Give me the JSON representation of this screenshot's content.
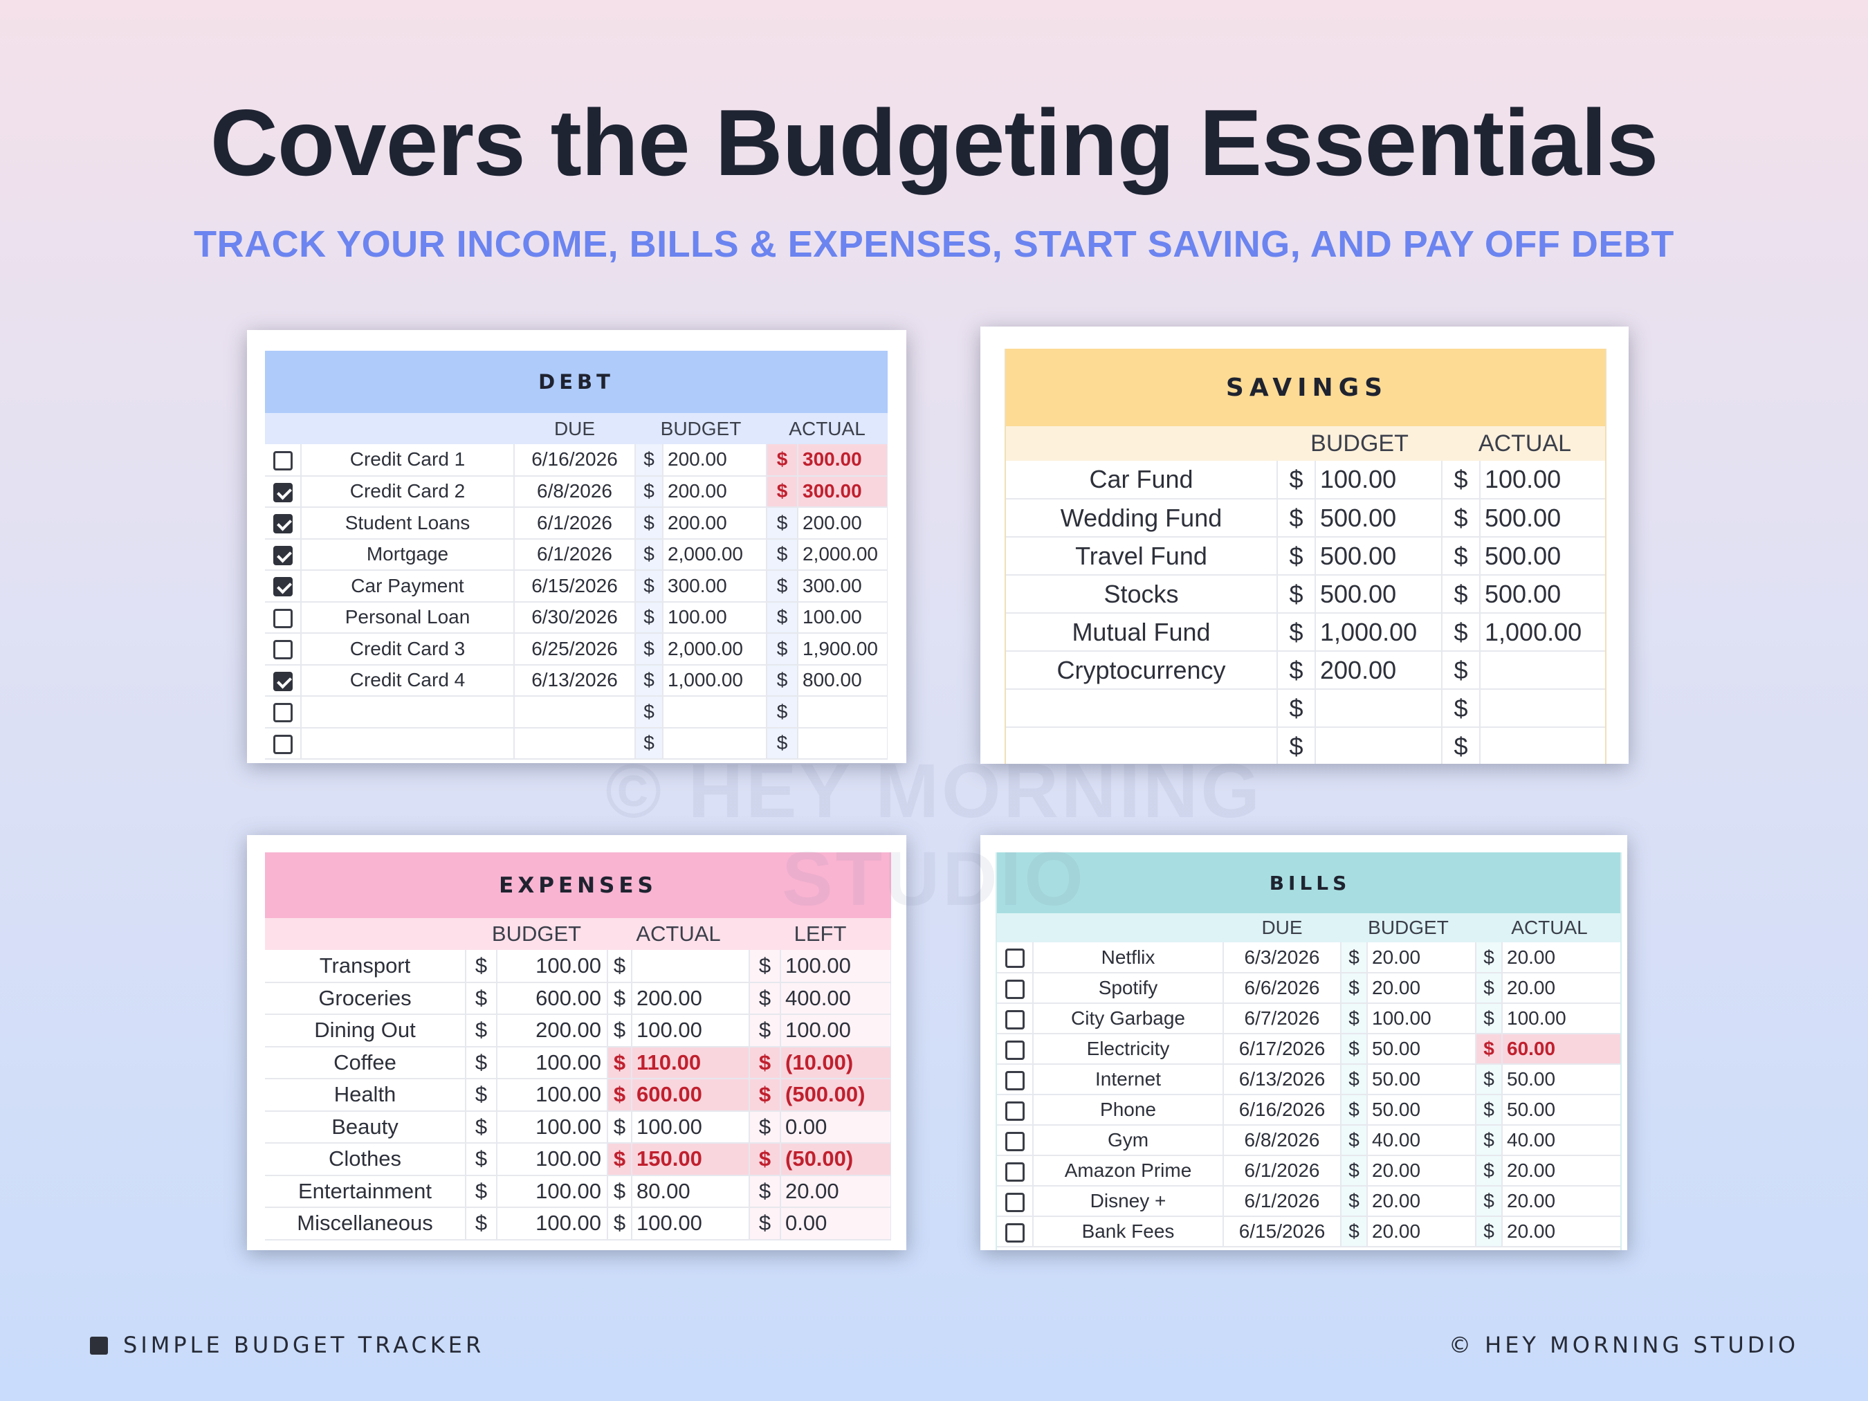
{
  "headline": "Covers the Budgeting Essentials",
  "subline": "TRACK YOUR INCOME, BILLS & EXPENSES, START SAVING, AND PAY OFF DEBT",
  "watermark": "© HEY MORNING STUDIO",
  "currency": "$",
  "colors": {
    "background_top": "#f4e1ea",
    "background_bottom": "#c9dcfb",
    "subline": "#6b84f0",
    "debt_header": "#aecbfa",
    "debt_subheader": "#dfe8fc",
    "savings_header": "#fddb94",
    "savings_subheader": "#fdf1dc",
    "expenses_header": "#f9b4d2",
    "expenses_subheader": "#fde0ea",
    "bills_header": "#a8dee1",
    "bills_subheader": "#def3f5",
    "over_budget_text": "#c0202e",
    "over_budget_fill": "#f9d6de"
  },
  "debt": {
    "title": "DEBT",
    "headers": {
      "due": "DUE",
      "budget": "BUDGET",
      "actual": "ACTUAL"
    },
    "rows": [
      {
        "checked": false,
        "name": "Credit Card 1",
        "due": "6/16/2026",
        "budget": "200.00",
        "actual": "300.00",
        "over": true
      },
      {
        "checked": true,
        "name": "Credit Card 2",
        "due": "6/8/2026",
        "budget": "200.00",
        "actual": "300.00",
        "over": true
      },
      {
        "checked": true,
        "name": "Student Loans",
        "due": "6/1/2026",
        "budget": "200.00",
        "actual": "200.00",
        "over": false
      },
      {
        "checked": true,
        "name": "Mortgage",
        "due": "6/1/2026",
        "budget": "2,000.00",
        "actual": "2,000.00",
        "over": false
      },
      {
        "checked": true,
        "name": "Car Payment",
        "due": "6/15/2026",
        "budget": "300.00",
        "actual": "300.00",
        "over": false
      },
      {
        "checked": false,
        "name": "Personal Loan",
        "due": "6/30/2026",
        "budget": "100.00",
        "actual": "100.00",
        "over": false
      },
      {
        "checked": false,
        "name": "Credit Card 3",
        "due": "6/25/2026",
        "budget": "2,000.00",
        "actual": "1,900.00",
        "over": false
      },
      {
        "checked": true,
        "name": "Credit Card 4",
        "due": "6/13/2026",
        "budget": "1,000.00",
        "actual": "800.00",
        "over": false
      },
      {
        "checked": false,
        "name": "",
        "due": "",
        "budget": "",
        "actual": "",
        "over": false
      },
      {
        "checked": false,
        "name": "",
        "due": "",
        "budget": "",
        "actual": "",
        "over": false
      }
    ]
  },
  "savings": {
    "title": "SAVINGS",
    "headers": {
      "budget": "BUDGET",
      "actual": "ACTUAL"
    },
    "rows": [
      {
        "name": "Car Fund",
        "budget": "100.00",
        "actual": "100.00"
      },
      {
        "name": "Wedding Fund",
        "budget": "500.00",
        "actual": "500.00"
      },
      {
        "name": "Travel Fund",
        "budget": "500.00",
        "actual": "500.00"
      },
      {
        "name": "Stocks",
        "budget": "500.00",
        "actual": "500.00"
      },
      {
        "name": "Mutual Fund",
        "budget": "1,000.00",
        "actual": "1,000.00"
      },
      {
        "name": "Cryptocurrency",
        "budget": "200.00",
        "actual": ""
      },
      {
        "name": "",
        "budget": "",
        "actual": ""
      },
      {
        "name": "",
        "budget": "",
        "actual": ""
      }
    ]
  },
  "expenses": {
    "title": "EXPENSES",
    "headers": {
      "budget": "BUDGET",
      "actual": "ACTUAL",
      "left": "LEFT"
    },
    "rows": [
      {
        "name": "Transport",
        "budget": "100.00",
        "actual": "",
        "left": "100.00",
        "over": false
      },
      {
        "name": "Groceries",
        "budget": "600.00",
        "actual": "200.00",
        "left": "400.00",
        "over": false
      },
      {
        "name": "Dining Out",
        "budget": "200.00",
        "actual": "100.00",
        "left": "100.00",
        "over": false
      },
      {
        "name": "Coffee",
        "budget": "100.00",
        "actual": "110.00",
        "left": "(10.00)",
        "over": true
      },
      {
        "name": "Health",
        "budget": "100.00",
        "actual": "600.00",
        "left": "(500.00)",
        "over": true
      },
      {
        "name": "Beauty",
        "budget": "100.00",
        "actual": "100.00",
        "left": "0.00",
        "over": false
      },
      {
        "name": "Clothes",
        "budget": "100.00",
        "actual": "150.00",
        "left": "(50.00)",
        "over": true
      },
      {
        "name": "Entertainment",
        "budget": "100.00",
        "actual": "80.00",
        "left": "20.00",
        "over": false
      },
      {
        "name": "Miscellaneous",
        "budget": "100.00",
        "actual": "100.00",
        "left": "0.00",
        "over": false
      }
    ]
  },
  "bills": {
    "title": "BILLS",
    "headers": {
      "due": "DUE",
      "budget": "BUDGET",
      "actual": "ACTUAL"
    },
    "rows": [
      {
        "checked": false,
        "name": "Netflix",
        "due": "6/3/2026",
        "budget": "20.00",
        "actual": "20.00",
        "over": false
      },
      {
        "checked": false,
        "name": "Spotify",
        "due": "6/6/2026",
        "budget": "20.00",
        "actual": "20.00",
        "over": false
      },
      {
        "checked": false,
        "name": "City Garbage",
        "due": "6/7/2026",
        "budget": "100.00",
        "actual": "100.00",
        "over": false
      },
      {
        "checked": false,
        "name": "Electricity",
        "due": "6/17/2026",
        "budget": "50.00",
        "actual": "60.00",
        "over": true
      },
      {
        "checked": false,
        "name": "Internet",
        "due": "6/13/2026",
        "budget": "50.00",
        "actual": "50.00",
        "over": false
      },
      {
        "checked": false,
        "name": "Phone",
        "due": "6/16/2026",
        "budget": "50.00",
        "actual": "50.00",
        "over": false
      },
      {
        "checked": false,
        "name": "Gym",
        "due": "6/8/2026",
        "budget": "40.00",
        "actual": "40.00",
        "over": false
      },
      {
        "checked": false,
        "name": "Amazon Prime",
        "due": "6/1/2026",
        "budget": "20.00",
        "actual": "20.00",
        "over": false
      },
      {
        "checked": false,
        "name": "Disney +",
        "due": "6/1/2026",
        "budget": "20.00",
        "actual": "20.00",
        "over": false
      },
      {
        "checked": false,
        "name": "Bank Fees",
        "due": "6/15/2026",
        "budget": "20.00",
        "actual": "20.00",
        "over": false
      }
    ]
  },
  "footer": {
    "left": "SIMPLE BUDGET TRACKER",
    "right": "© HEY MORNING STUDIO"
  }
}
